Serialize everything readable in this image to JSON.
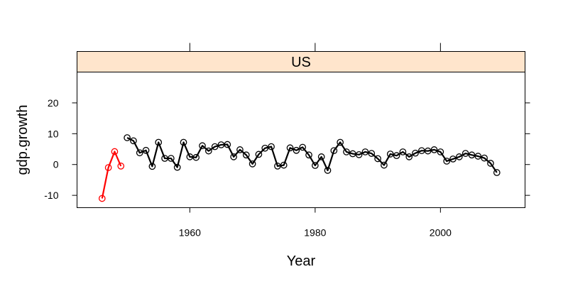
{
  "chart_data": {
    "type": "line",
    "panel_label": "US",
    "xlabel": "Year",
    "ylabel": "gdp.growth",
    "xlim": [
      1942,
      2013.5
    ],
    "ylim": [
      -14,
      30
    ],
    "xticks": [
      1960,
      1980,
      2000
    ],
    "yticks": [
      -10,
      0,
      10,
      20
    ],
    "grid": false,
    "colors": {
      "early": "#ff0000",
      "main": "#000000",
      "strip_fill": "#ffe5cc"
    },
    "series": [
      {
        "color": "#ff0000",
        "x": [
          1946,
          1947,
          1948,
          1949
        ],
        "y": [
          -11,
          -1,
          4.2,
          -0.5
        ]
      },
      {
        "color": "#000000",
        "x": [
          1950,
          1951,
          1952,
          1953,
          1954,
          1955,
          1956,
          1957,
          1958,
          1959,
          1960,
          1961,
          1962,
          1963,
          1964,
          1965,
          1966,
          1967,
          1968,
          1969,
          1970,
          1971,
          1972,
          1973,
          1974,
          1975,
          1976,
          1977,
          1978,
          1979,
          1980,
          1981,
          1982,
          1983,
          1984,
          1985,
          1986,
          1987,
          1988,
          1989,
          1990,
          1991,
          1992,
          1993,
          1994,
          1995,
          1996,
          1997,
          1998,
          1999,
          2000,
          2001,
          2002,
          2003,
          2004,
          2005,
          2006,
          2007,
          2008,
          2009
        ],
        "y": [
          8.7,
          7.7,
          3.8,
          4.6,
          -0.6,
          7.2,
          2.0,
          2.0,
          -0.9,
          7.2,
          2.5,
          2.3,
          6.1,
          4.4,
          5.8,
          6.4,
          6.5,
          2.5,
          4.8,
          3.1,
          0.2,
          3.3,
          5.3,
          5.8,
          -0.5,
          -0.2,
          5.4,
          4.6,
          5.6,
          3.1,
          -0.3,
          2.5,
          -1.9,
          4.5,
          7.2,
          4.1,
          3.5,
          3.2,
          4.1,
          3.6,
          1.9,
          -0.2,
          3.4,
          2.9,
          4.1,
          2.5,
          3.7,
          4.5,
          4.4,
          4.8,
          4.1,
          1.1,
          1.8,
          2.5,
          3.6,
          3.1,
          2.7,
          2.1,
          0.4,
          -2.6
        ]
      }
    ]
  }
}
